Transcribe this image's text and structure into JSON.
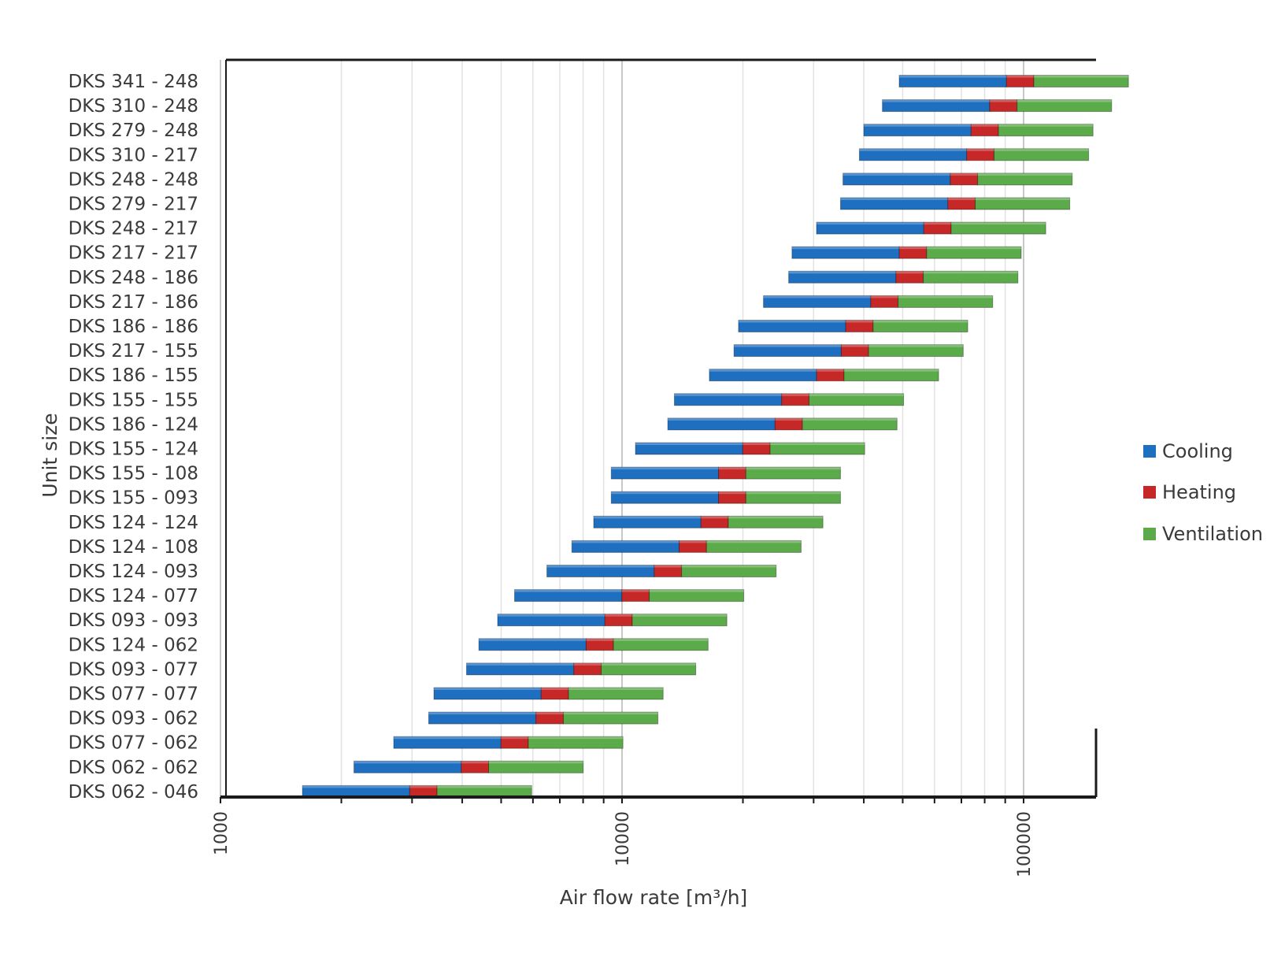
{
  "chart_data": {
    "type": "bar",
    "orientation": "horizontal",
    "stacked": true,
    "title": "",
    "xlabel": "Air flow rate [m³/h]",
    "ylabel": "Unit size",
    "x_scale": "log",
    "xlim": [
      1000,
      160000
    ],
    "x_ticks": [
      "1000",
      "10000",
      "100000"
    ],
    "grid": true,
    "legend_position": "right",
    "categories": [
      "DKS 341 - 248",
      "DKS 310 - 248",
      "DKS 279 - 248",
      "DKS 310 - 217",
      "DKS 248 - 248",
      "DKS 279 - 217",
      "DKS 248 - 217",
      "DKS 217 - 217",
      "DKS 248 - 186",
      "DKS 217 - 186",
      "DKS 186 - 186",
      "DKS 217 - 155",
      "DKS 186 - 155",
      "DKS 155 - 155",
      "DKS 186 - 124",
      "DKS 155 - 124",
      "DKS 155 - 108",
      "DKS 155 - 093",
      "DKS 124 - 124",
      "DKS 124 - 108",
      "DKS 124 - 093",
      "DKS 124 - 077",
      "DKS 093 - 093",
      "DKS 124 - 062",
      "DKS 093 - 077",
      "DKS 077 - 077",
      "DKS 093 - 062",
      "DKS 077 - 062",
      "DKS 062 - 062",
      "DKS 062 - 046"
    ],
    "range_start": [
      49000,
      44500,
      40000,
      39000,
      35500,
      35000,
      30500,
      26500,
      26000,
      22500,
      19500,
      19000,
      16500,
      13500,
      13000,
      10800,
      9400,
      9400,
      8500,
      7500,
      6500,
      5400,
      4900,
      4400,
      4100,
      3400,
      3300,
      2700,
      2150,
      1600
    ],
    "series": [
      {
        "name": "Cooling",
        "color": "#1f6fc0",
        "factor": 1.85
      },
      {
        "name": "Heating",
        "color": "#c62828",
        "factor": 1.17
      },
      {
        "name": "Ventilation",
        "color": "#5bab4a",
        "factor": 1.72
      }
    ]
  }
}
